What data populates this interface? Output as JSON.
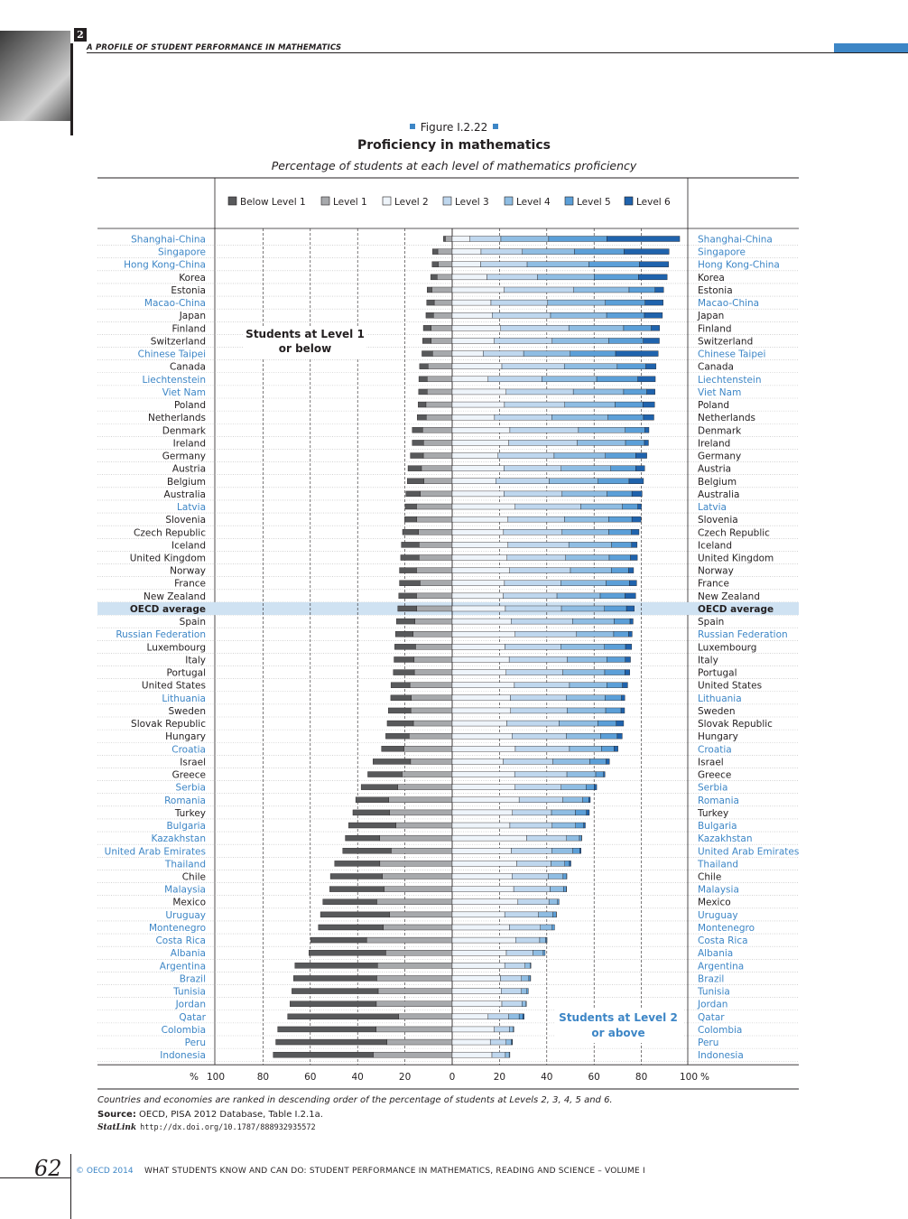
{
  "header": {
    "chapter_number": "2",
    "title": "A PROFILE OF STUDENT PERFORMANCE IN MATHEMATICS"
  },
  "figure": {
    "label": "Figure I.2.22",
    "title": "Proficiency in mathematics",
    "subtitle": "Percentage of students at each level of mathematics proficiency"
  },
  "colors": {
    "below1": "#58595b",
    "level1": "#a7a9ac",
    "level2": "#eef4fa",
    "level3": "#bfd7ee",
    "level4": "#8fbde3",
    "level5": "#5b9fd8",
    "level6": "#1f63ad",
    "accent": "#3d86c6",
    "partner_text": "#3d86c6",
    "oecd_band": "#cfe2f2"
  },
  "chart_data": {
    "type": "bar",
    "orientation": "horizontal-diverging",
    "title": "Proficiency in mathematics",
    "subtitle": "Percentage of students at each level of mathematics proficiency",
    "legend": [
      "Below Level 1",
      "Level 1",
      "Level 2",
      "Level 3",
      "Level 4",
      "Level 5",
      "Level 6"
    ],
    "annotations": {
      "left": [
        "Students at Level 1",
        "or below"
      ],
      "right": [
        "Students at Level 2",
        "or above"
      ]
    },
    "xaxis": {
      "ticks": [
        "100",
        "80",
        "60",
        "40",
        "20",
        "0",
        "20",
        "40",
        "60",
        "80",
        "100"
      ],
      "unit_label": "%",
      "range_left": [
        100,
        0
      ],
      "range_right": [
        0,
        100
      ]
    },
    "columns": [
      "country",
      "partner",
      "below1",
      "l1",
      "l2",
      "l3",
      "l4",
      "l5",
      "l6"
    ],
    "rows": [
      [
        "Shanghai-China",
        true,
        0.8,
        2.9,
        7.5,
        13.1,
        20.2,
        24.6,
        30.8
      ],
      [
        "Singapore",
        true,
        2.2,
        6.1,
        12.2,
        17.5,
        22.0,
        21.0,
        19.0
      ],
      [
        "Hong Kong-China",
        true,
        2.6,
        5.9,
        12.0,
        19.7,
        26.1,
        21.4,
        12.3
      ],
      [
        "Korea",
        false,
        2.7,
        6.4,
        14.7,
        21.4,
        23.9,
        18.8,
        12.1
      ],
      [
        "Estonia",
        false,
        2.0,
        8.6,
        22.0,
        29.4,
        23.4,
        11.0,
        3.6
      ],
      [
        "Macao-China",
        true,
        3.2,
        7.6,
        16.4,
        24.0,
        24.4,
        16.8,
        7.6
      ],
      [
        "Japan",
        false,
        3.2,
        7.9,
        16.9,
        24.7,
        23.7,
        16.0,
        7.6
      ],
      [
        "Finland",
        false,
        3.3,
        8.9,
        20.5,
        28.8,
        23.2,
        11.7,
        3.5
      ],
      [
        "Switzerland",
        false,
        3.6,
        8.9,
        17.8,
        24.5,
        23.9,
        14.6,
        6.8
      ],
      [
        "Chinese Taipei",
        true,
        4.5,
        8.3,
        13.1,
        17.1,
        19.7,
        19.2,
        18.0
      ],
      [
        "Canada",
        false,
        3.6,
        10.2,
        21.0,
        26.4,
        22.4,
        12.1,
        4.3
      ],
      [
        "Liechtenstein",
        true,
        3.5,
        10.6,
        15.2,
        22.7,
        23.2,
        17.4,
        7.4
      ],
      [
        "Viet Nam",
        true,
        3.6,
        10.6,
        22.8,
        28.4,
        21.3,
        9.8,
        3.5
      ],
      [
        "Poland",
        false,
        3.3,
        11.1,
        22.1,
        25.5,
        21.3,
        11.7,
        5.0
      ],
      [
        "Netherlands",
        false,
        3.8,
        11.0,
        17.9,
        24.2,
        23.8,
        15.0,
        4.4
      ],
      [
        "Denmark",
        false,
        4.4,
        12.5,
        24.4,
        29.0,
        19.8,
        8.3,
        1.7
      ],
      [
        "Ireland",
        false,
        4.8,
        12.1,
        23.9,
        29.0,
        20.4,
        8.0,
        1.7
      ],
      [
        "Germany",
        false,
        5.5,
        12.2,
        19.4,
        23.7,
        21.7,
        12.8,
        4.7
      ],
      [
        "Austria",
        false,
        5.7,
        13.0,
        21.9,
        24.2,
        21.0,
        10.5,
        3.8
      ],
      [
        "Belgium",
        false,
        7.0,
        12.0,
        18.4,
        22.6,
        20.7,
        13.1,
        6.1
      ],
      [
        "Australia",
        false,
        6.1,
        13.5,
        21.9,
        24.6,
        19.0,
        10.5,
        4.3
      ],
      [
        "Latvia",
        true,
        4.8,
        15.1,
        26.6,
        27.8,
        17.6,
        6.5,
        1.5
      ],
      [
        "Slovenia",
        false,
        5.1,
        15.0,
        23.6,
        23.9,
        18.7,
        9.8,
        3.9
      ],
      [
        "Czech Republic",
        false,
        6.8,
        14.2,
        21.7,
        24.8,
        19.7,
        9.6,
        3.2
      ],
      [
        "Iceland",
        false,
        7.5,
        14.0,
        23.6,
        25.7,
        18.1,
        8.5,
        2.3
      ],
      [
        "United Kingdom",
        false,
        7.8,
        14.0,
        23.2,
        24.8,
        18.4,
        9.0,
        2.9
      ],
      [
        "Norway",
        false,
        7.2,
        15.1,
        24.3,
        25.7,
        17.3,
        7.3,
        2.1
      ],
      [
        "France",
        false,
        8.7,
        13.6,
        22.1,
        23.8,
        19.2,
        9.8,
        3.1
      ],
      [
        "New Zealand",
        false,
        7.5,
        15.1,
        21.6,
        22.7,
        18.3,
        10.5,
        4.5
      ],
      [
        "OECD average",
        false,
        8.0,
        15.0,
        22.5,
        23.7,
        18.2,
        9.3,
        3.3
      ],
      [
        "Spain",
        false,
        7.8,
        15.8,
        24.9,
        26.0,
        17.6,
        6.7,
        1.3
      ],
      [
        "Russian Federation",
        true,
        7.5,
        16.5,
        26.6,
        26.0,
        15.7,
        6.3,
        1.5
      ],
      [
        "Luxembourg",
        false,
        8.8,
        15.5,
        22.3,
        23.6,
        18.5,
        8.9,
        2.6
      ],
      [
        "Italy",
        false,
        8.5,
        16.1,
        24.1,
        24.6,
        16.7,
        7.8,
        2.2
      ],
      [
        "Portugal",
        false,
        8.9,
        16.0,
        22.8,
        24.0,
        17.7,
        8.5,
        2.1
      ],
      [
        "United States",
        false,
        8.0,
        17.9,
        26.3,
        23.3,
        15.8,
        6.6,
        2.2
      ],
      [
        "Lithuania",
        true,
        8.7,
        17.3,
        24.6,
        23.6,
        16.4,
        7.0,
        1.4
      ],
      [
        "Sweden",
        false,
        9.5,
        17.5,
        24.7,
        23.9,
        16.3,
        6.5,
        1.5
      ],
      [
        "Slovak Republic",
        false,
        11.1,
        16.4,
        23.1,
        22.1,
        16.4,
        7.8,
        3.1
      ],
      [
        "Hungary",
        false,
        9.9,
        18.2,
        25.3,
        23.0,
        14.4,
        7.1,
        2.1
      ],
      [
        "Croatia",
        true,
        9.5,
        20.4,
        26.7,
        22.9,
        13.5,
        5.4,
        1.6
      ],
      [
        "Israel",
        false,
        15.9,
        17.6,
        21.6,
        21.0,
        15.6,
        6.9,
        1.4
      ],
      [
        "Greece",
        false,
        14.5,
        21.2,
        26.4,
        22.1,
        12.2,
        3.3,
        0.6
      ],
      [
        "Serbia",
        true,
        15.5,
        23.0,
        26.6,
        19.5,
        10.5,
        3.5,
        1.0
      ],
      [
        "Romania",
        true,
        14.0,
        26.8,
        28.3,
        18.5,
        8.4,
        2.6,
        0.6
      ],
      [
        "Turkey",
        false,
        15.5,
        26.5,
        25.5,
        16.5,
        10.1,
        4.7,
        1.2
      ],
      [
        "Bulgaria",
        true,
        20.0,
        23.8,
        24.4,
        17.9,
        9.9,
        3.4,
        0.7
      ],
      [
        "Kazakhstan",
        true,
        14.5,
        30.7,
        31.5,
        16.9,
        5.4,
        0.9,
        0.1
      ],
      [
        "United Arab Emirates",
        true,
        20.5,
        25.8,
        25.0,
        17.1,
        8.9,
        2.9,
        0.6
      ],
      [
        "Thailand",
        true,
        19.1,
        30.6,
        27.3,
        14.5,
        5.8,
        2.0,
        0.6
      ],
      [
        "Chile",
        false,
        22.0,
        29.5,
        25.3,
        15.4,
        6.2,
        1.5,
        0.1
      ],
      [
        "Malaysia",
        true,
        23.0,
        28.8,
        26.0,
        15.4,
        5.7,
        1.2,
        0.1
      ],
      [
        "Mexico",
        false,
        22.8,
        31.9,
        27.8,
        13.1,
        3.7,
        0.6,
        0.0
      ],
      [
        "Uruguay",
        true,
        29.2,
        26.5,
        22.2,
        14.3,
        6.1,
        1.4,
        0.1
      ],
      [
        "Montenegro",
        true,
        27.5,
        29.1,
        24.2,
        13.1,
        5.0,
        1.0,
        0.0
      ],
      [
        "Costa Rica",
        true,
        23.6,
        36.2,
        26.8,
        10.2,
        2.5,
        0.5,
        0.1
      ],
      [
        "Albania",
        true,
        32.5,
        28.1,
        22.9,
        11.3,
        4.3,
        0.8,
        0.0
      ],
      [
        "Argentina",
        true,
        34.9,
        31.6,
        22.2,
        8.6,
        2.2,
        0.3,
        0.0
      ],
      [
        "Brazil",
        true,
        35.2,
        31.9,
        20.4,
        8.9,
        3.1,
        0.7,
        0.1
      ],
      [
        "Tunisia",
        true,
        36.5,
        31.3,
        20.7,
        8.6,
        2.3,
        0.6,
        0.0
      ],
      [
        "Jordan",
        true,
        36.5,
        32.1,
        21.0,
        8.5,
        1.7,
        0.2,
        0.0
      ],
      [
        "Qatar",
        true,
        47.0,
        22.6,
        15.2,
        8.7,
        4.4,
        1.6,
        0.5
      ],
      [
        "Colombia",
        true,
        41.6,
        32.2,
        17.8,
        6.4,
        1.6,
        0.3,
        0.0
      ],
      [
        "Peru",
        true,
        47.0,
        27.6,
        16.1,
        6.7,
        2.1,
        0.5,
        0.1
      ],
      [
        "Indonesia",
        true,
        42.3,
        33.4,
        16.8,
        5.7,
        1.6,
        0.3,
        0.0
      ]
    ]
  },
  "notes": {
    "ranking_note": "Countries and economies are ranked in descending order of the percentage of students at Levels 2, 3, 4, 5 and 6.",
    "source_label": "Source:",
    "source_text": "OECD, PISA 2012 Database, Table I.2.1a.",
    "statlink_label": "StatLink",
    "statlink_url": "http://dx.doi.org/10.1787/888932935572"
  },
  "footer": {
    "page_number": "62",
    "copyright": "© OECD 2014",
    "book_title": "WHAT STUDENTS KNOW AND CAN DO: STUDENT PERFORMANCE IN MATHEMATICS, READING AND SCIENCE – VOLUME I"
  }
}
